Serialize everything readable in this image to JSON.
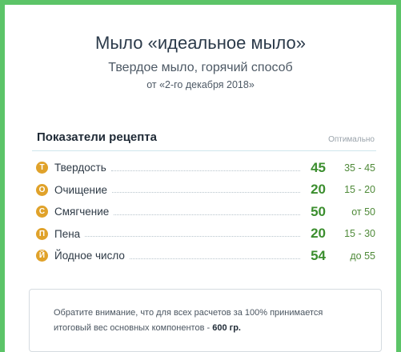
{
  "header": {
    "title": "Мыло «идеальное мыло»",
    "subtitle": "Твердое мыло, горячий способ",
    "date": "от «2-го декабря 2018»"
  },
  "indicators": {
    "title": "Показатели рецепта",
    "optimal_label": "Оптимально",
    "rows": [
      {
        "badge": "Т",
        "label": "Твердость",
        "value": "45",
        "range": "35 - 45"
      },
      {
        "badge": "О",
        "label": "Очищение",
        "value": "20",
        "range": "15 - 20"
      },
      {
        "badge": "С",
        "label": "Смягчение",
        "value": "50",
        "range": "от 50"
      },
      {
        "badge": "П",
        "label": "Пена",
        "value": "20",
        "range": "15 - 30"
      },
      {
        "badge": "Й",
        "label": "Йодное число",
        "value": "54",
        "range": "до 55"
      }
    ]
  },
  "note": {
    "line1": "Обратите внимание, что для всех расчетов за 100% принимается",
    "line2": "итоговый вес основных компонентов - ",
    "weight": "600 гр."
  },
  "colors": {
    "frame": "#5cc468",
    "badge": "#e0a22a",
    "value": "#3b8e2e",
    "range": "#4f8a39"
  }
}
